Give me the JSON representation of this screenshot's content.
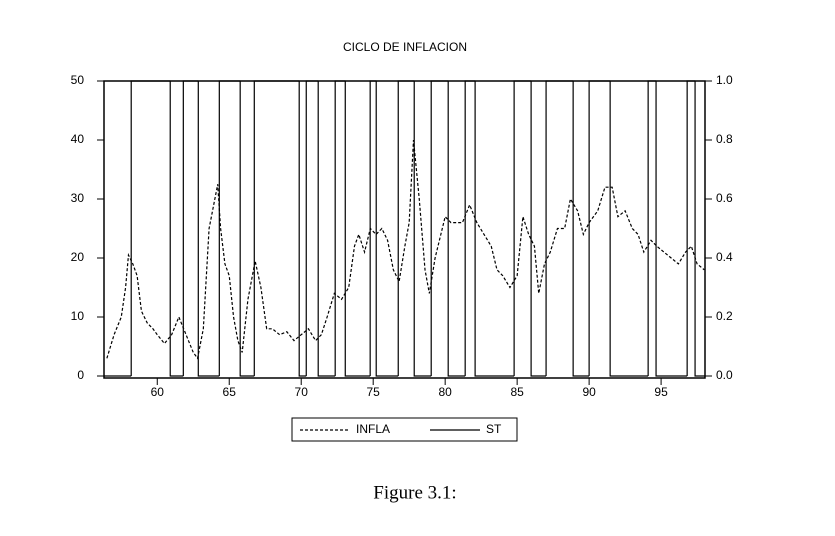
{
  "chart_data": {
    "type": "line",
    "title": "CICLO DE INFLACION",
    "caption": "Figure 3.1:",
    "xlim": [
      56.3,
      98.05
    ],
    "xticks": [
      60,
      65,
      70,
      75,
      80,
      85,
      90,
      95
    ],
    "ylim": [
      0,
      50
    ],
    "yticks": [
      0,
      10,
      20,
      30,
      40,
      50
    ],
    "y2lim": [
      0,
      1
    ],
    "y2ticks": [
      {
        "value": 0,
        "label": "0.0"
      },
      0.2,
      0.4,
      0.6,
      0.8,
      {
        "value": 1,
        "label": "1.0"
      }
    ],
    "series": [
      {
        "name": "INFLA",
        "color": "#000000",
        "style": "dashed",
        "x": [
          56.5,
          57,
          57.5,
          57.8,
          58,
          58.3,
          58.6,
          58.9,
          59.3,
          59.7,
          60,
          60.5,
          61,
          61.5,
          62,
          62.5,
          62.8,
          63.2,
          63.6,
          64,
          64.2,
          64.4,
          64.7,
          65,
          65.3,
          65.6,
          65.9,
          66.3,
          66.8,
          67.2,
          67.6,
          68,
          68.5,
          69,
          69.5,
          70,
          70.5,
          71,
          71.4,
          71.8,
          72.3,
          72.8,
          73.3,
          73.7,
          74,
          74.4,
          74.8,
          75.2,
          75.6,
          76,
          76.4,
          76.8,
          77.2,
          77.5,
          77.8,
          78.2,
          78.6,
          78.9,
          79.3,
          79.7,
          80,
          80.4,
          80.8,
          81.2,
          81.7,
          82.2,
          82.7,
          83.2,
          83.6,
          84,
          84.5,
          85,
          85.4,
          85.8,
          86.2,
          86.5,
          86.9,
          87.3,
          87.8,
          88.3,
          88.7,
          89.2,
          89.6,
          90,
          90.6,
          91.1,
          91.6,
          92,
          92.5,
          93,
          93.4,
          93.8,
          94.3,
          94.7,
          95.2,
          95.7,
          96.2,
          96.7,
          97.1,
          97.5,
          98
        ],
        "values": [
          3,
          7,
          10,
          15,
          20.5,
          19,
          17,
          11,
          9,
          8,
          7,
          5.5,
          7,
          10,
          7,
          4,
          3,
          8,
          25,
          30,
          32.5,
          25,
          19,
          17,
          10,
          6,
          4,
          13,
          19.5,
          15,
          8,
          8,
          7,
          7.5,
          6,
          7,
          8,
          6,
          7,
          10,
          14,
          13,
          15,
          22,
          24,
          21,
          25,
          24,
          25,
          23,
          18,
          16,
          22,
          26,
          40,
          30,
          18,
          14,
          20,
          24,
          27,
          26,
          26,
          26,
          29,
          26,
          24,
          22,
          18,
          17,
          15,
          17,
          27,
          24,
          22,
          14,
          19,
          21,
          25,
          25,
          30,
          28,
          24,
          26,
          28,
          32,
          32,
          27,
          28,
          25,
          24,
          21,
          23,
          22,
          21,
          20,
          19,
          21,
          22,
          19,
          18
        ]
      },
      {
        "name": "ST",
        "color": "#000000",
        "style": "solid",
        "axis": "y2",
        "x": [
          56.3,
          58.19,
          60.9,
          61.81,
          62.85,
          64.31,
          65.76,
          66.74,
          69.86,
          70.35,
          71.18,
          72.36,
          73.06,
          74.79,
          75.21,
          76.74,
          77.85,
          79.03,
          80.21,
          81.39,
          82.08,
          84.79,
          85.97,
          87.01,
          88.89,
          90.0,
          91.46,
          94.1,
          94.65,
          96.81,
          97.36
        ],
        "values": [
          0,
          1,
          0,
          1,
          0,
          1,
          0,
          1,
          0,
          1,
          0,
          1,
          0,
          1,
          0,
          1,
          0,
          1,
          0,
          1,
          0,
          1,
          0,
          1,
          0,
          1,
          0,
          1,
          0,
          1,
          0
        ]
      }
    ]
  }
}
